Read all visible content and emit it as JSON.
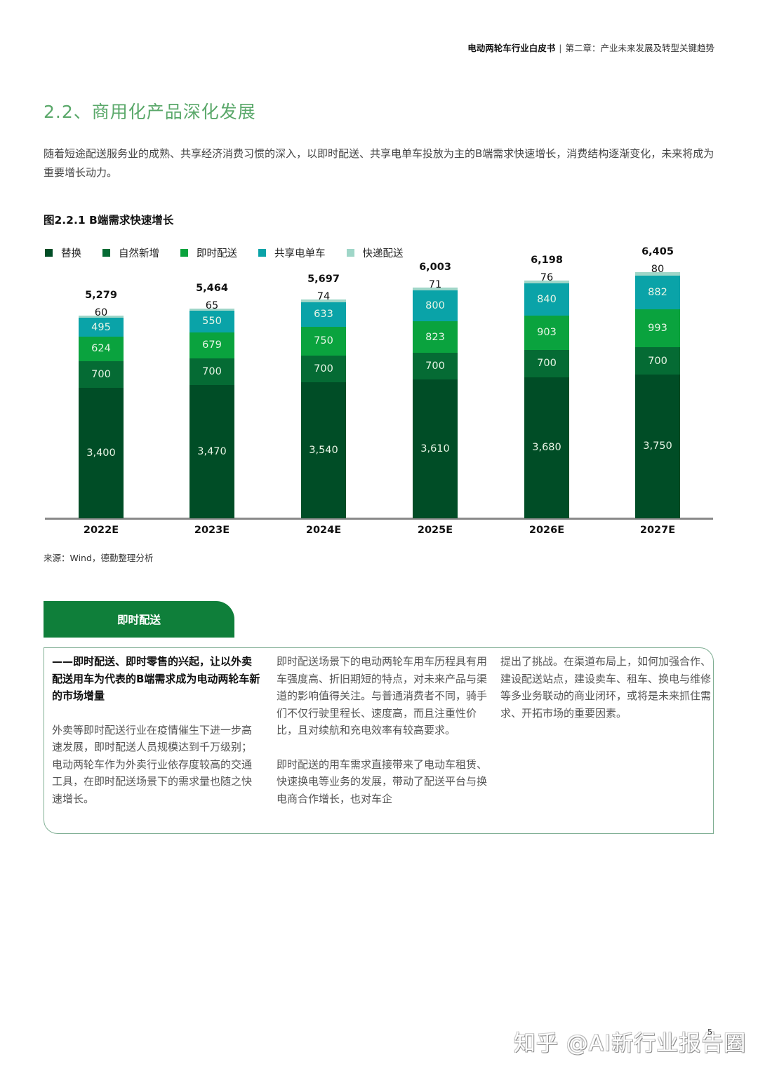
{
  "header": {
    "doc_title": "电动两轮车行业白皮书",
    "separator": "|",
    "chapter": "第二章：产业未来发展及转型关键趋势"
  },
  "section": {
    "title": "2.2、商用化产品深化发展",
    "intro": "随着短途配送服务业的成熟、共享经济消费习惯的深入，以即时配送、共享电单车投放为主的B端需求快速增长，消费结构逐渐变化，未来将成为重要增长动力。"
  },
  "figure": {
    "title": "图2.2.1  B端需求快速增长",
    "source": "来源：Wind，德勤整理分析"
  },
  "legend": [
    {
      "label": "替换",
      "color": "#004d26"
    },
    {
      "label": "自然新增",
      "color": "#056b34"
    },
    {
      "label": "即时配送",
      "color": "#0aa33e"
    },
    {
      "label": "共享电单车",
      "color": "#0aa3a8"
    },
    {
      "label": "快递配送",
      "color": "#9fd6c8"
    }
  ],
  "chart_data": {
    "type": "bar",
    "stacked": true,
    "title": "图2.2.1  B端需求快速增长",
    "xlabel": "",
    "ylabel": "",
    "categories": [
      "2022E",
      "2023E",
      "2024E",
      "2025E",
      "2026E",
      "2027E"
    ],
    "series": [
      {
        "name": "替换",
        "color": "#004d26",
        "values": [
          3400,
          3470,
          3540,
          3610,
          3680,
          3750
        ]
      },
      {
        "name": "自然新增",
        "color": "#056b34",
        "values": [
          700,
          700,
          700,
          700,
          700,
          700
        ]
      },
      {
        "name": "即时配送",
        "color": "#0aa33e",
        "values": [
          624,
          679,
          750,
          823,
          903,
          993
        ]
      },
      {
        "name": "共享电单车",
        "color": "#0aa3a8",
        "values": [
          495,
          550,
          633,
          800,
          840,
          882
        ]
      },
      {
        "name": "快递配送",
        "color": "#9fd6c8",
        "values": [
          60,
          65,
          74,
          71,
          76,
          80
        ]
      }
    ],
    "totals": [
      5279,
      5464,
      5697,
      6003,
      6198,
      6405
    ],
    "total_labels": [
      "5,279",
      "5,464",
      "5,697",
      "6,003",
      "6,198",
      "6,405"
    ],
    "value_labels": [
      [
        "3,400",
        "700",
        "624",
        "495",
        "60"
      ],
      [
        "3,470",
        "700",
        "679",
        "550",
        "65"
      ],
      [
        "3,540",
        "700",
        "750",
        "633",
        "74"
      ],
      [
        "3,610",
        "700",
        "823",
        "800",
        "71"
      ],
      [
        "3,680",
        "700",
        "903",
        "840",
        "76"
      ],
      [
        "3,750",
        "700",
        "993",
        "882",
        "80"
      ]
    ],
    "legend_position": "top",
    "grid": false,
    "ylim": [
      0,
      7000
    ]
  },
  "panel": {
    "tab_label": "即时配送",
    "col1": {
      "lead": "——即时配送、即时零售的兴起，让以外卖配送用车为代表的B端需求成为电动两轮车新的市场增量",
      "body": "外卖等即时配送行业在疫情催生下进一步高速发展，即时配送人员规模达到千万级别；电动两轮车作为外卖行业依存度较高的交通工具，在即时配送场景下的需求量也随之快速增长。"
    },
    "col2": {
      "p1": "即时配送场景下的电动两轮车用车历程具有用车强度高、折旧期短的特点，对未来产品与渠道的影响值得关注。与普通消费者不同，骑手们不仅行驶里程长、速度高，而且注重性价比，且对续航和充电效率有较高要求。",
      "p2": "即时配送的用车需求直接带来了电动车租赁、快速换电等业务的发展，带动了配送平台与换电商合作增长，也对车企"
    },
    "col3": {
      "p1": "提出了挑战。在渠道布局上，如何加强合作、建设配送站点，建设卖车、租车、换电与维修等多业务联动的商业闭环，或将是未来抓住需求、开拓市场的重要因素。"
    }
  },
  "footer": {
    "watermark": "知乎 @AI新行业报告圈",
    "page_number": "5"
  }
}
